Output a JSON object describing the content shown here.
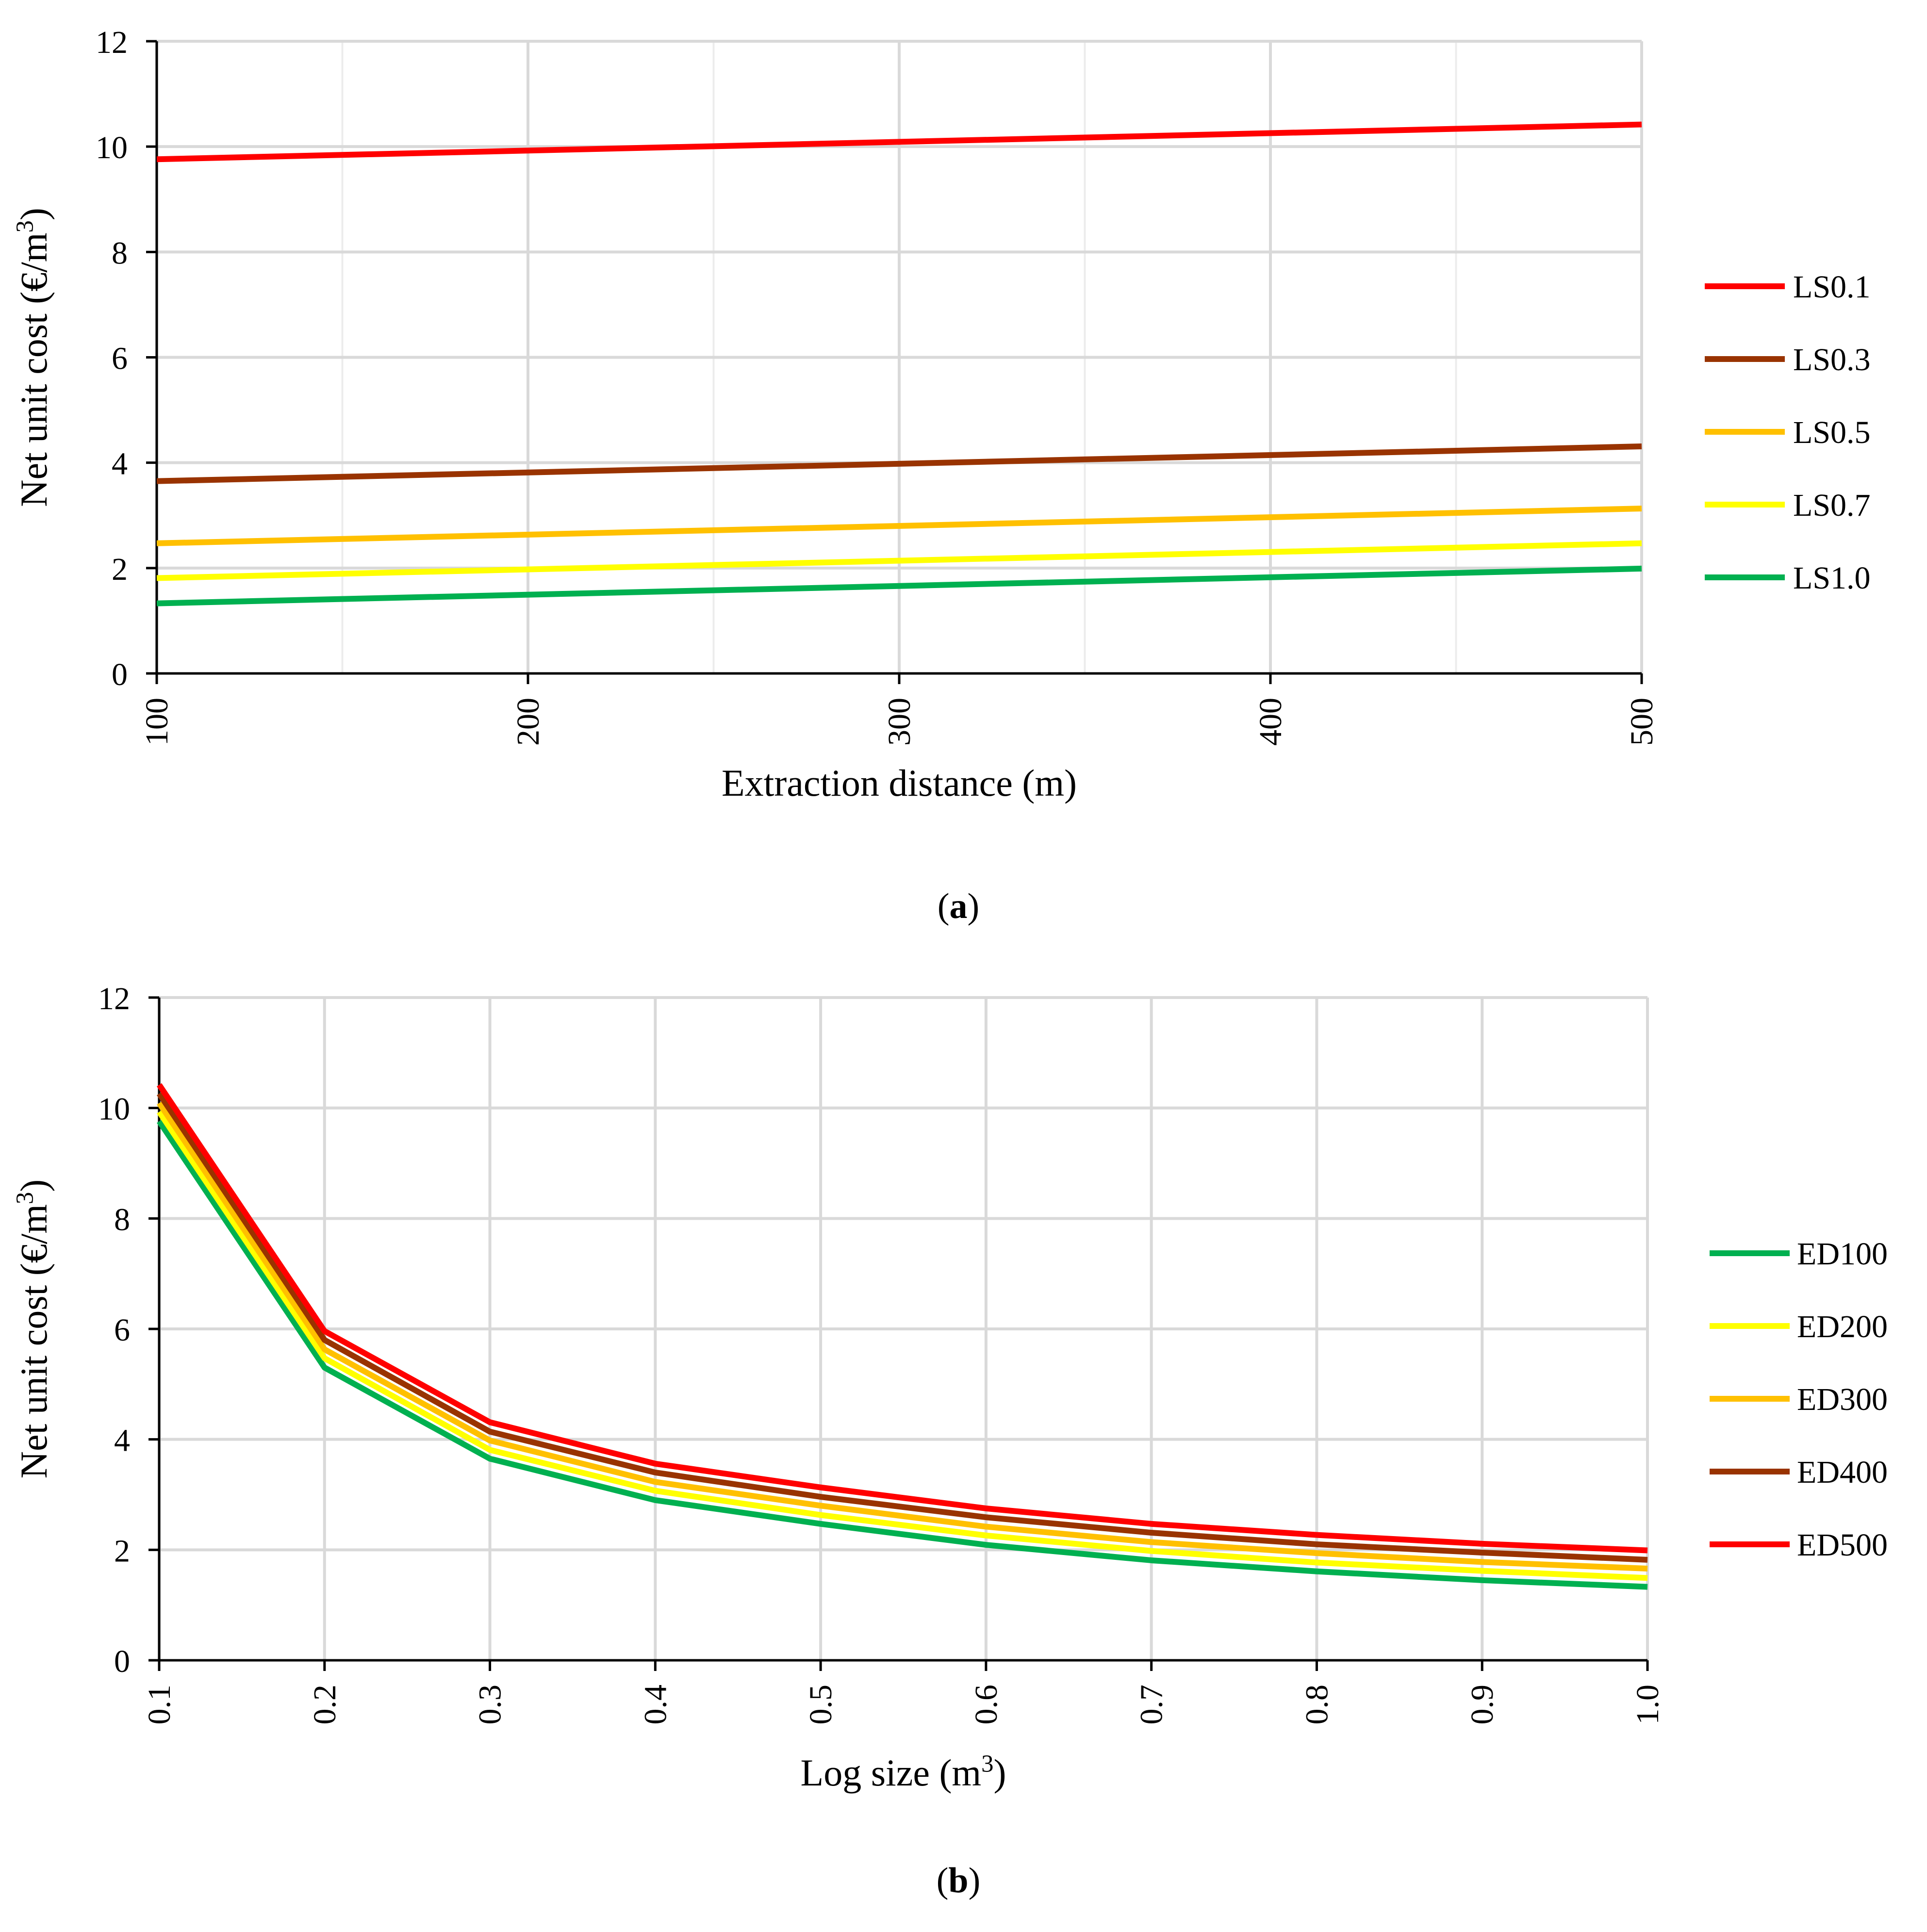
{
  "chart_data": [
    {
      "type": "line",
      "panel_label": "a",
      "xlabel": "Extraction distance (m)",
      "ylabel": "Net unit cost (€/m³)",
      "xlim": [
        100,
        500
      ],
      "ylim": [
        0,
        12
      ],
      "x_ticks": [
        "100",
        "200",
        "300",
        "400",
        "500"
      ],
      "y_ticks": [
        "0",
        "2",
        "4",
        "6",
        "8",
        "10",
        "12"
      ],
      "grid": true,
      "legend_position": "right",
      "x": [
        100,
        500
      ],
      "series": [
        {
          "name": "LS0.1",
          "color": "#ff0000",
          "values": [
            9.76,
            10.42
          ]
        },
        {
          "name": "LS0.3",
          "color": "#993300",
          "values": [
            3.65,
            4.31
          ]
        },
        {
          "name": "LS0.5",
          "color": "#ffc000",
          "values": [
            2.47,
            3.13
          ]
        },
        {
          "name": "LS0.7",
          "color": "#ffff00",
          "values": [
            1.81,
            2.47
          ]
        },
        {
          "name": "LS1.0",
          "color": "#00b050",
          "values": [
            1.33,
            1.99
          ]
        }
      ]
    },
    {
      "type": "line",
      "panel_label": "b",
      "xlabel": "Log size (m³)",
      "ylabel": "Net unit cost (€/m³)",
      "xlim": [
        0.1,
        1.0
      ],
      "ylim": [
        0,
        12
      ],
      "x_ticks": [
        "0.1",
        "0.2",
        "0.3",
        "0.4",
        "0.5",
        "0.6",
        "0.7",
        "0.8",
        "0.9",
        "1.0"
      ],
      "y_ticks": [
        "0",
        "2",
        "4",
        "6",
        "8",
        "10",
        "12"
      ],
      "grid": true,
      "legend_position": "right",
      "x": [
        0.1,
        0.2,
        0.3,
        0.4,
        0.5,
        0.6,
        0.7,
        0.8,
        0.9,
        1.0
      ],
      "series": [
        {
          "name": "ED100",
          "color": "#00b050",
          "values": [
            9.76,
            5.3,
            3.65,
            2.9,
            2.47,
            2.09,
            1.81,
            1.61,
            1.45,
            1.33
          ]
        },
        {
          "name": "ED200",
          "color": "#ffff00",
          "values": [
            9.93,
            5.47,
            3.81,
            3.07,
            2.63,
            2.26,
            1.98,
            1.77,
            1.62,
            1.49
          ]
        },
        {
          "name": "ED300",
          "color": "#ffc000",
          "values": [
            10.09,
            5.63,
            3.98,
            3.23,
            2.8,
            2.42,
            2.14,
            1.94,
            1.78,
            1.66
          ]
        },
        {
          "name": "ED400",
          "color": "#993300",
          "values": [
            10.26,
            5.8,
            4.14,
            3.4,
            2.96,
            2.59,
            2.31,
            2.1,
            1.95,
            1.82
          ]
        },
        {
          "name": "ED500",
          "color": "#ff0000",
          "values": [
            10.42,
            5.96,
            4.31,
            3.56,
            3.13,
            2.75,
            2.47,
            2.27,
            2.11,
            1.99
          ]
        }
      ]
    }
  ]
}
